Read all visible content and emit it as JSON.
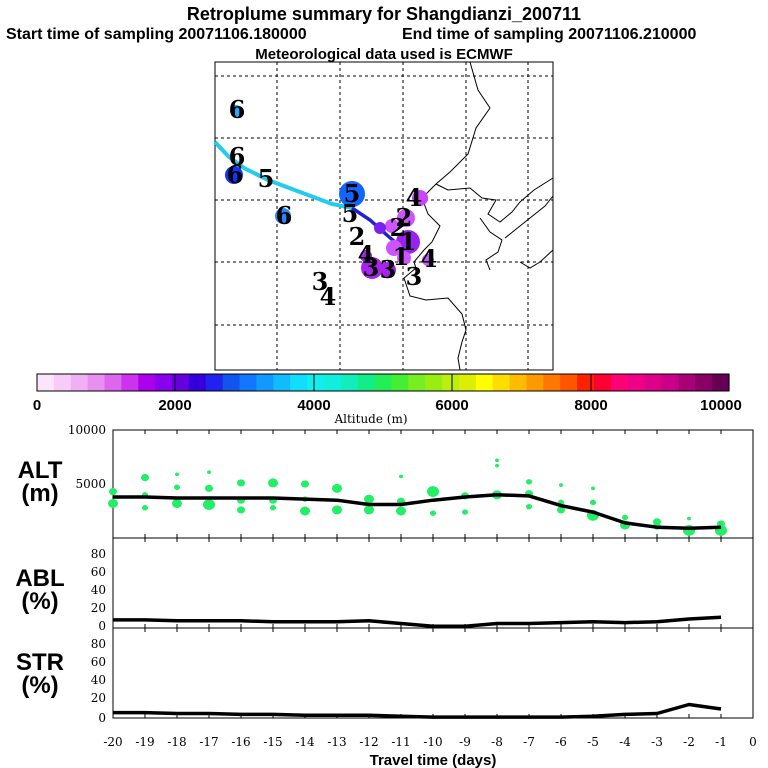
{
  "header": {
    "title": "Retroplume summary for Shangdianzi_200711",
    "start_label": "Start time of sampling 20071106.180000",
    "end_label": "End time of sampling 20071106.210000",
    "meteo_label": "Meteorological data used is ECMWF"
  },
  "colors": {
    "alt_dots": "#22ee66",
    "line": "#000000",
    "traj_cyan": "#22ccee",
    "traj_blue": "#2222cc"
  },
  "chart_data": [
    {
      "type": "map",
      "name": "retroplume map",
      "markers": [
        {
          "label": "6",
          "day": 6,
          "altitude_m": 3200,
          "color": "#22aaff"
        },
        {
          "label": "6",
          "day": 6,
          "altitude_m": 2600,
          "color": "#1133ff"
        },
        {
          "label": "6",
          "day": 6,
          "altitude_m": 2900,
          "color": "#2288ff"
        },
        {
          "label": "5",
          "day": 5,
          "altitude_m": 2700,
          "color": "#1166ff"
        },
        {
          "label": "4",
          "day": 4,
          "altitude_m": 900,
          "color": "#cc44ff"
        },
        {
          "label": "3",
          "day": 3,
          "altitude_m": 1400,
          "color": "#aa22ee"
        },
        {
          "label": "2",
          "day": 2,
          "altitude_m": 1000,
          "color": "#cc55ff"
        },
        {
          "label": "1",
          "day": 1,
          "altitude_m": 900,
          "color": "#9922ee"
        }
      ],
      "labels_only": [
        "6",
        "5",
        "5",
        "2",
        "3",
        "3",
        "4",
        "4",
        "4",
        "1",
        "2"
      ]
    },
    {
      "type": "colorbar",
      "xlabel": "Altitude (m)",
      "range": [
        0,
        10000
      ],
      "ticks": [
        "0",
        "2000",
        "4000",
        "6000",
        "8000",
        "10000"
      ],
      "colors": [
        "#fce4fc",
        "#f8ccf8",
        "#f0b0f4",
        "#e890f0",
        "#dd66ee",
        "#cc33ee",
        "#aa00ee",
        "#8800ee",
        "#6600dd",
        "#3300dd",
        "#2222ee",
        "#1155ee",
        "#1177ff",
        "#1199ff",
        "#11bbff",
        "#11ddff",
        "#11eeee",
        "#11eedd",
        "#11eebb",
        "#11ee88",
        "#22ee55",
        "#44ee33",
        "#77ee22",
        "#99ee11",
        "#bbee11",
        "#ddee00",
        "#ffff00",
        "#ffdd00",
        "#ffbb00",
        "#ff9900",
        "#ff7700",
        "#ff5500",
        "#ff2200",
        "#ff0033",
        "#ff0077",
        "#ee0088",
        "#dd0088",
        "#cc0088",
        "#aa0077",
        "#880066",
        "#660055"
      ]
    },
    {
      "type": "line",
      "name": "ALT",
      "ylabel": "ALT (m)",
      "ylabel_line1": "ALT",
      "ylabel_line2": "(m)",
      "ylim": [
        0,
        10000
      ],
      "yticks": [
        "5000",
        "10000"
      ],
      "x": [
        -20,
        -19,
        -18,
        -17,
        -16,
        -15,
        -14,
        -13,
        -12,
        -11,
        -10,
        -9,
        -8,
        -7,
        -6,
        -5,
        -4,
        -3,
        -2,
        -1
      ],
      "values": [
        3800,
        3800,
        3700,
        3700,
        3700,
        3700,
        3600,
        3500,
        3100,
        3100,
        3500,
        3800,
        4000,
        3900,
        3000,
        2400,
        1400,
        1000,
        900,
        1000
      ],
      "dots": [
        {
          "x": -20,
          "y": 4300,
          "s": 4
        },
        {
          "x": -20,
          "y": 3200,
          "s": 5
        },
        {
          "x": -19,
          "y": 5600,
          "s": 4
        },
        {
          "x": -19,
          "y": 4000,
          "s": 3
        },
        {
          "x": -19,
          "y": 2800,
          "s": 3
        },
        {
          "x": -18,
          "y": 5900,
          "s": 2
        },
        {
          "x": -18,
          "y": 4700,
          "s": 3
        },
        {
          "x": -18,
          "y": 3200,
          "s": 5
        },
        {
          "x": -17,
          "y": 6100,
          "s": 2
        },
        {
          "x": -17,
          "y": 4600,
          "s": 4
        },
        {
          "x": -17,
          "y": 3100,
          "s": 6
        },
        {
          "x": -16,
          "y": 5100,
          "s": 4
        },
        {
          "x": -16,
          "y": 3500,
          "s": 4
        },
        {
          "x": -16,
          "y": 2600,
          "s": 4
        },
        {
          "x": -15,
          "y": 5100,
          "s": 5
        },
        {
          "x": -15,
          "y": 3500,
          "s": 4
        },
        {
          "x": -15,
          "y": 2800,
          "s": 3
        },
        {
          "x": -14,
          "y": 5000,
          "s": 4
        },
        {
          "x": -14,
          "y": 3600,
          "s": 3
        },
        {
          "x": -14,
          "y": 2500,
          "s": 5
        },
        {
          "x": -13,
          "y": 4600,
          "s": 5
        },
        {
          "x": -13,
          "y": 2600,
          "s": 5
        },
        {
          "x": -12,
          "y": 3600,
          "s": 5
        },
        {
          "x": -12,
          "y": 2600,
          "s": 5
        },
        {
          "x": -11,
          "y": 5700,
          "s": 2
        },
        {
          "x": -11,
          "y": 3400,
          "s": 4
        },
        {
          "x": -11,
          "y": 2500,
          "s": 5
        },
        {
          "x": -10,
          "y": 4300,
          "s": 6
        },
        {
          "x": -10,
          "y": 2300,
          "s": 3
        },
        {
          "x": -9,
          "y": 3900,
          "s": 4
        },
        {
          "x": -9,
          "y": 2400,
          "s": 3
        },
        {
          "x": -8,
          "y": 7200,
          "s": 2
        },
        {
          "x": -8,
          "y": 6700,
          "s": 2
        },
        {
          "x": -8,
          "y": 4000,
          "s": 5
        },
        {
          "x": -7,
          "y": 5200,
          "s": 3
        },
        {
          "x": -7,
          "y": 4100,
          "s": 4
        },
        {
          "x": -7,
          "y": 2900,
          "s": 3
        },
        {
          "x": -6,
          "y": 4900,
          "s": 2
        },
        {
          "x": -6,
          "y": 3300,
          "s": 3
        },
        {
          "x": -6,
          "y": 2600,
          "s": 4
        },
        {
          "x": -5,
          "y": 4600,
          "s": 2
        },
        {
          "x": -5,
          "y": 3300,
          "s": 3
        },
        {
          "x": -5,
          "y": 2100,
          "s": 6
        },
        {
          "x": -4,
          "y": 1900,
          "s": 3
        },
        {
          "x": -4,
          "y": 1200,
          "s": 5
        },
        {
          "x": -3,
          "y": 1500,
          "s": 4
        },
        {
          "x": -3,
          "y": 1100,
          "s": 4
        },
        {
          "x": -2,
          "y": 1800,
          "s": 2
        },
        {
          "x": -2,
          "y": 700,
          "s": 6
        },
        {
          "x": -1,
          "y": 1300,
          "s": 4
        },
        {
          "x": -1,
          "y": 700,
          "s": 6
        }
      ]
    },
    {
      "type": "line",
      "name": "ABL",
      "ylabel": "ABL (%)",
      "ylabel_line1": "ABL",
      "ylabel_line2": "(%)",
      "ylim": [
        0,
        100
      ],
      "yticks": [
        "0",
        "20",
        "40",
        "60",
        "80"
      ],
      "x": [
        -20,
        -19,
        -18,
        -17,
        -16,
        -15,
        -14,
        -13,
        -12,
        -11,
        -10,
        -9,
        -8,
        -7,
        -6,
        -5,
        -4,
        -3,
        -2,
        -1
      ],
      "values": [
        9,
        9,
        8,
        8,
        8,
        7,
        7,
        7,
        8,
        5,
        2,
        2,
        5,
        5,
        6,
        7,
        6,
        7,
        10,
        12
      ]
    },
    {
      "type": "line",
      "name": "STR",
      "ylabel": "STR (%)",
      "ylabel_line1": "STR",
      "ylabel_line2": "(%)",
      "ylim": [
        0,
        100
      ],
      "yticks": [
        "0",
        "20",
        "40",
        "60",
        "80"
      ],
      "x": [
        -20,
        -19,
        -18,
        -17,
        -16,
        -15,
        -14,
        -13,
        -12,
        -11,
        -10,
        -9,
        -8,
        -7,
        -6,
        -5,
        -4,
        -3,
        -2,
        -1
      ],
      "values": [
        6,
        6,
        5,
        5,
        4,
        4,
        3,
        3,
        3,
        2,
        1,
        1,
        1,
        1,
        1,
        2,
        4,
        5,
        15,
        10
      ],
      "xlabel": "Travel time (days)",
      "xticks": [
        "-20",
        "-19",
        "-18",
        "-17",
        "-16",
        "-15",
        "-14",
        "-13",
        "-12",
        "-11",
        "-10",
        "-9",
        "-8",
        "-7",
        "-6",
        "-5",
        "-4",
        "-3",
        "-2",
        "-1",
        "0"
      ]
    }
  ]
}
